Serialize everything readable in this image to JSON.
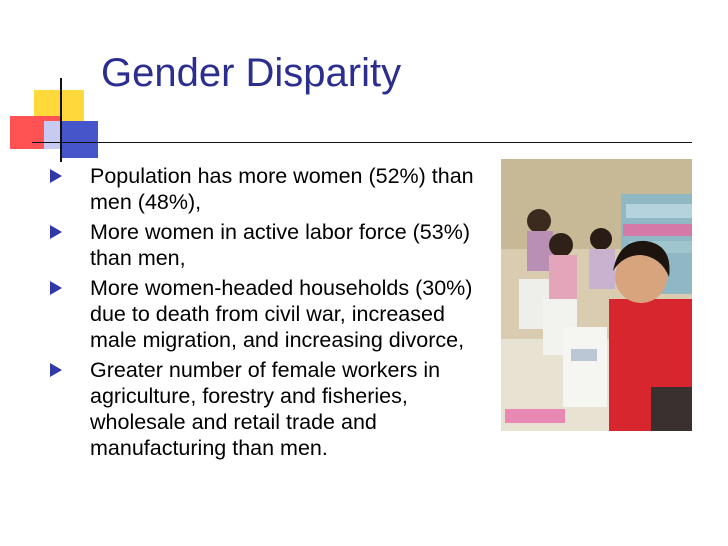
{
  "slide": {
    "title": "Gender Disparity",
    "bullets": [
      "Population has more women (52%) than men (48%),",
      "More women in active labor force (53%) than men,",
      "More women-headed households (30%) due to death from civil war, increased male migration, and increasing divorce,",
      "Greater number of female workers in agriculture, forestry and fisheries, wholesale and retail trade and manufacturing than men."
    ]
  },
  "colors": {
    "title": "#2b2e8f",
    "bullet": "#2f3aa8",
    "deco_yellow": "#ffd83a",
    "deco_red": "#ff5252",
    "deco_blue": "#4655c9"
  },
  "photo": {
    "subject": "women-sewing-factory-photo"
  }
}
